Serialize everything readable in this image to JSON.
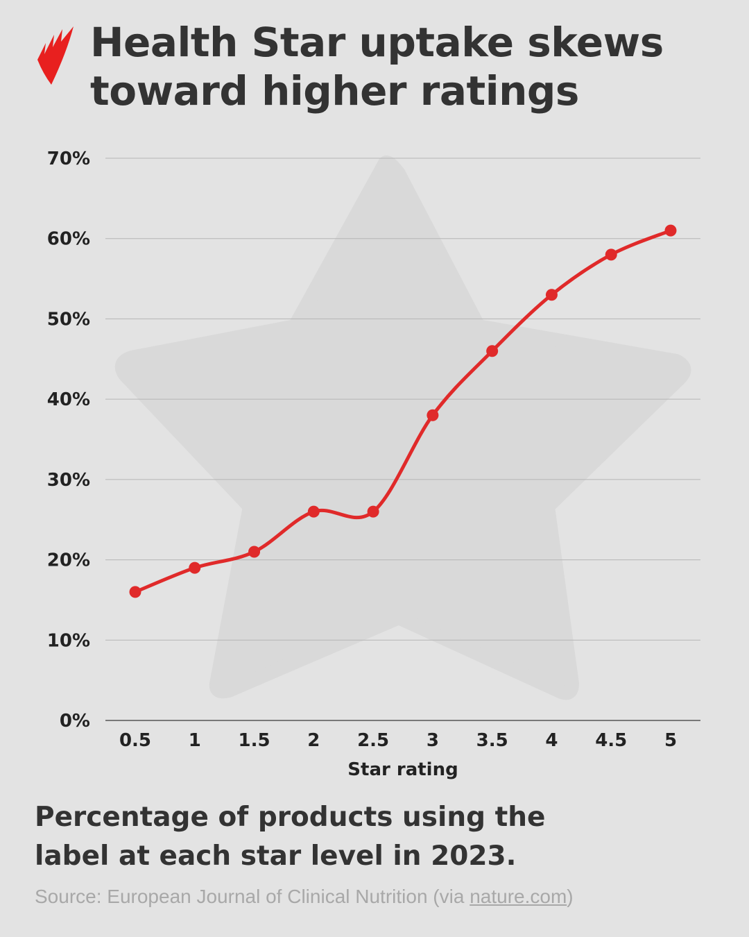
{
  "title": "Health Star uptake skews toward higher ratings",
  "subtitle": "Percentage of products using the label at each star level in 2023.",
  "source": {
    "prefix": "Source: European Journal of Clinical Nutrition (via ",
    "link": "nature.com",
    "suffix": ")"
  },
  "colors": {
    "line": "#e02a2a",
    "background": "#e3e3e3",
    "star": "#d9d9d9",
    "logo": "#e8201f"
  },
  "icons": {
    "logo": "sbs-logo",
    "background": "star-shape"
  },
  "chart_data": {
    "type": "line",
    "xlabel": "Star rating",
    "ylabel": "",
    "categories": [
      "0.5",
      "1",
      "1.5",
      "2",
      "2.5",
      "3",
      "3.5",
      "4",
      "4.5",
      "5"
    ],
    "values": [
      16,
      19,
      21,
      26,
      26,
      38,
      46,
      53,
      58,
      61
    ],
    "ylim": [
      0,
      70
    ],
    "yticks": [
      "0%",
      "10%",
      "20%",
      "30%",
      "40%",
      "50%",
      "60%",
      "70%"
    ],
    "grid": true,
    "unit": "%"
  }
}
